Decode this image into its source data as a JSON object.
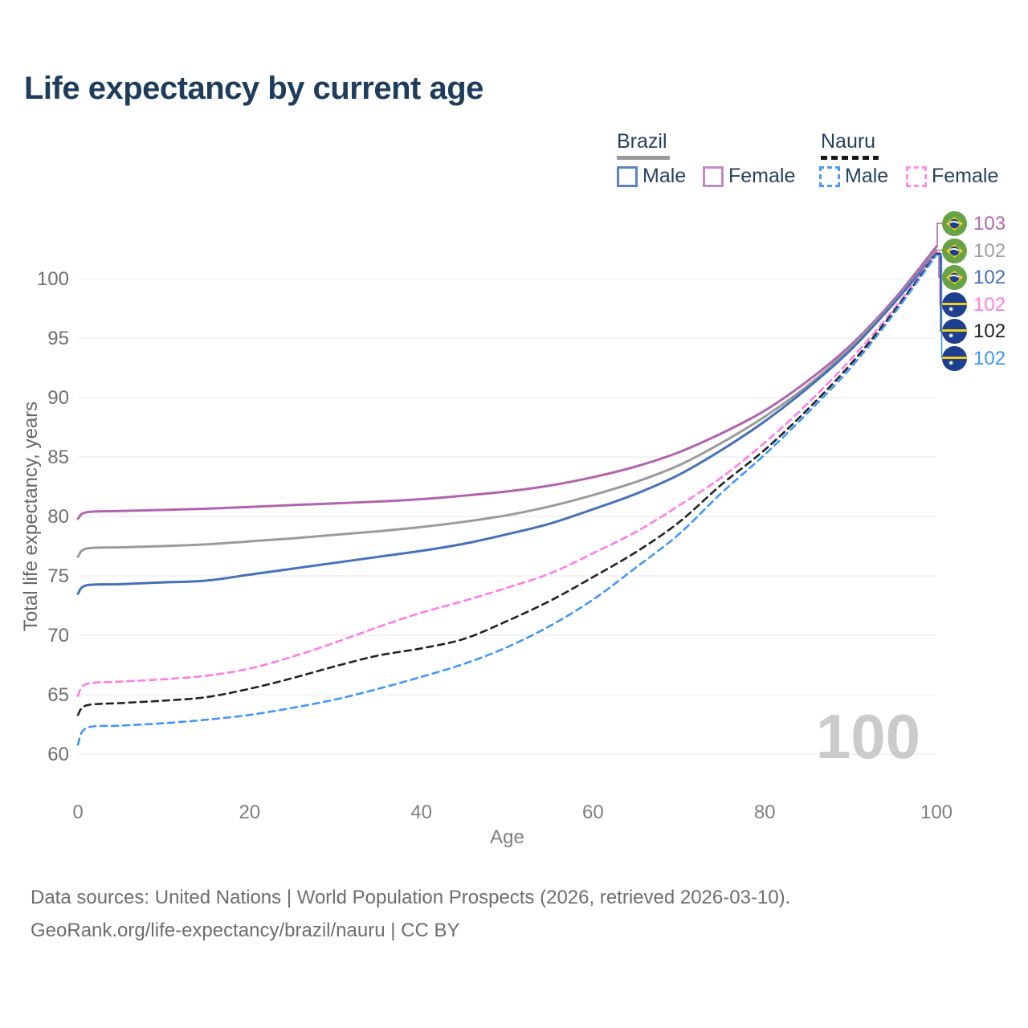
{
  "title": "Life expectancy by current age",
  "legend": {
    "groups": [
      {
        "country": "Brazil",
        "line_style": "solid",
        "underline_color": "#9a9a9a",
        "items": [
          {
            "label": "Male",
            "color": "#4571b8"
          },
          {
            "label": "Female",
            "color": "#b263ae"
          }
        ]
      },
      {
        "country": "Nauru",
        "line_style": "dashed",
        "underline_color": "#161616",
        "items": [
          {
            "label": "Male",
            "color": "#3f97fb"
          },
          {
            "label": "Female",
            "color": "#ff7ce5"
          }
        ]
      }
    ]
  },
  "chart_data": {
    "type": "line",
    "title": "Life expectancy by current age",
    "xlabel": "Age",
    "ylabel": "Total life expectancy, years",
    "xticks": [
      0,
      20,
      40,
      60,
      80,
      100
    ],
    "yticks": [
      60,
      65,
      70,
      75,
      80,
      85,
      90,
      95,
      100
    ],
    "xlim": [
      0,
      100
    ],
    "ylim": [
      58.5,
      104
    ],
    "grid": true,
    "legend_position": "top-right",
    "watermark": "100",
    "x": [
      0,
      1,
      5,
      10,
      15,
      20,
      25,
      30,
      35,
      40,
      45,
      50,
      55,
      60,
      65,
      70,
      75,
      80,
      85,
      90,
      95,
      100
    ],
    "series": [
      {
        "name": "Brazil Female",
        "country": "Brazil",
        "sex": "Female",
        "color": "#b263ae",
        "dash": false,
        "values": [
          79.8,
          80.35,
          80.45,
          80.55,
          80.65,
          80.8,
          80.95,
          81.1,
          81.25,
          81.45,
          81.75,
          82.1,
          82.6,
          83.3,
          84.2,
          85.4,
          87.0,
          88.9,
          91.4,
          94.4,
          98.2,
          102.7
        ]
      },
      {
        "name": "Brazil Total",
        "country": "Brazil",
        "sex": "Both",
        "color": "#9b9b9b",
        "dash": false,
        "values": [
          76.6,
          77.3,
          77.4,
          77.5,
          77.65,
          77.9,
          78.15,
          78.45,
          78.75,
          79.1,
          79.55,
          80.1,
          80.85,
          81.8,
          82.9,
          84.3,
          86.2,
          88.4,
          91.0,
          94.2,
          98.0,
          102.4
        ]
      },
      {
        "name": "Brazil Male",
        "country": "Brazil",
        "sex": "Male",
        "color": "#4571b8",
        "dash": false,
        "values": [
          73.5,
          74.2,
          74.3,
          74.45,
          74.6,
          75.1,
          75.6,
          76.1,
          76.6,
          77.1,
          77.7,
          78.5,
          79.4,
          80.6,
          81.9,
          83.5,
          85.6,
          88.0,
          90.8,
          94.0,
          97.9,
          102.2
        ]
      },
      {
        "name": "Nauru Female",
        "country": "Nauru",
        "sex": "Female",
        "color": "#ff7ce5",
        "dash": true,
        "values": [
          64.9,
          65.9,
          66.1,
          66.3,
          66.6,
          67.2,
          68.2,
          69.4,
          70.7,
          71.9,
          72.9,
          74.0,
          75.2,
          76.9,
          78.7,
          80.9,
          83.3,
          86.2,
          89.5,
          93.2,
          97.4,
          102.2
        ]
      },
      {
        "name": "Nauru Total",
        "country": "Nauru",
        "sex": "Both",
        "color": "#222222",
        "dash": true,
        "values": [
          63.3,
          64.1,
          64.3,
          64.5,
          64.8,
          65.5,
          66.4,
          67.4,
          68.3,
          68.9,
          69.7,
          71.2,
          72.9,
          74.9,
          77.0,
          79.5,
          82.7,
          85.6,
          89.0,
          92.8,
          97.2,
          102.1
        ]
      },
      {
        "name": "Nauru Male",
        "country": "Nauru",
        "sex": "Male",
        "color": "#3f97fb",
        "dash": true,
        "values": [
          60.8,
          62.2,
          62.4,
          62.6,
          62.9,
          63.3,
          63.9,
          64.6,
          65.5,
          66.5,
          67.6,
          69.0,
          70.8,
          73.0,
          75.7,
          78.5,
          82.0,
          85.2,
          88.7,
          92.5,
          97.0,
          102.0
        ]
      }
    ]
  },
  "end_labels": [
    {
      "flag": "brazil-flag-icon",
      "value": "103",
      "color": "#b06ab3"
    },
    {
      "flag": "brazil-flag-icon",
      "value": "102",
      "color": "#9e9e9e"
    },
    {
      "flag": "brazil-flag-icon",
      "value": "102",
      "color": "#4571b8"
    },
    {
      "flag": "nauru-flag-icon",
      "value": "102",
      "color": "#ff7ce5"
    },
    {
      "flag": "nauru-flag-icon",
      "value": "102",
      "color": "#222222"
    },
    {
      "flag": "nauru-flag-icon",
      "value": "102",
      "color": "#3f97fb"
    }
  ],
  "footer": {
    "line1": "Data sources: United Nations | World Population Prospects (2026, retrieved 2026-03-10).",
    "line2": "GeoRank.org/life-expectancy/brazil/nauru | CC BY"
  },
  "colors": {
    "title_text": "#1e3c5c",
    "legend_text": "#26425e",
    "axis_text": "#757575",
    "gridline": "#e7e7e7",
    "watermark": "#cbcbcb"
  }
}
